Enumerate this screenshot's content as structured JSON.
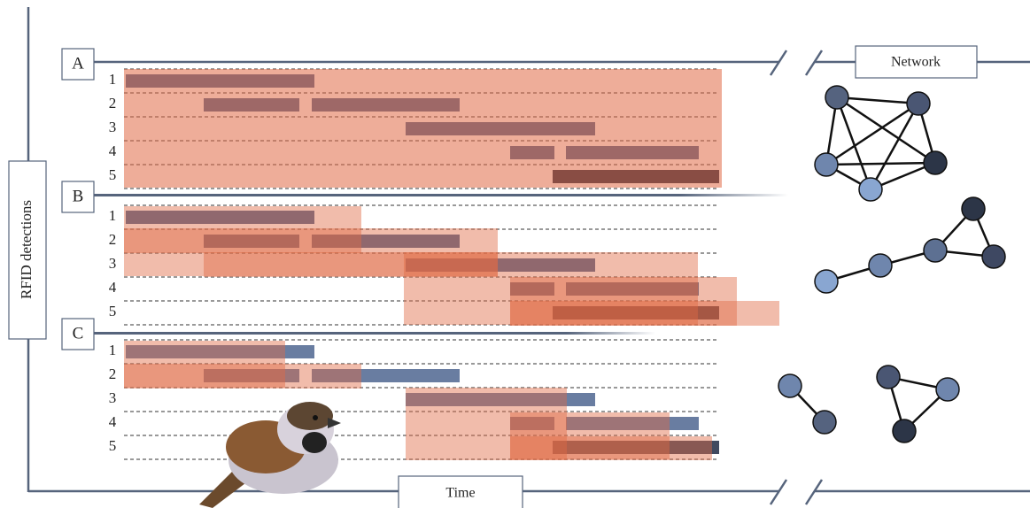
{
  "panels": [
    {
      "label": "A",
      "rows": [
        "1",
        "2",
        "3",
        "4",
        "5"
      ]
    },
    {
      "label": "B",
      "rows": [
        "1",
        "2",
        "3",
        "4",
        "5"
      ]
    },
    {
      "label": "C",
      "rows": [
        "1",
        "2",
        "3",
        "4",
        "5"
      ]
    }
  ],
  "network_label": "Network",
  "y_axis_label": "RFID detections",
  "x_axis_label": "Time"
}
